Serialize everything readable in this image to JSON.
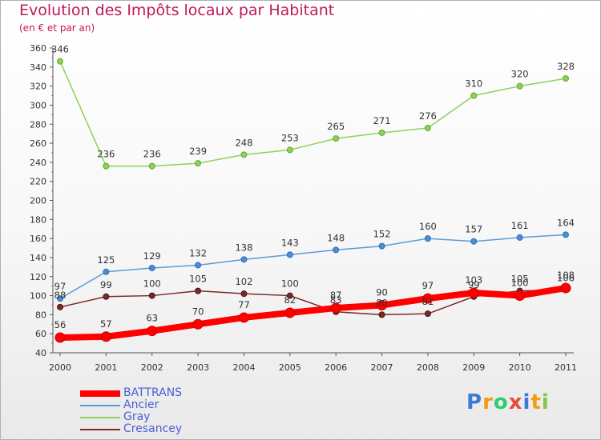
{
  "chart_data": {
    "type": "line",
    "title": "Evolution des Impôts locaux par Habitant",
    "subtitle": "(en € et par an)",
    "xlabel": "",
    "ylabel": "",
    "ylim": [
      40,
      360
    ],
    "yticks": [
      "40",
      "60",
      "80",
      "100",
      "120",
      "140",
      "160",
      "180",
      "200",
      "220",
      "240",
      "260",
      "280",
      "300",
      "320",
      "340",
      "360"
    ],
    "categories": [
      "2000",
      "2001",
      "2002",
      "2003",
      "2004",
      "2005",
      "2006",
      "2007",
      "2008",
      "2009",
      "2010",
      "2011"
    ],
    "series": [
      {
        "name": "BATTRANS",
        "color": "#ff0000",
        "values": [
          56,
          57,
          63,
          70,
          77,
          82,
          87,
          90,
          97,
          103,
          100,
          108
        ],
        "labels": [
          "56",
          "57",
          "63",
          "70",
          "77",
          "82",
          "87",
          "90",
          "97",
          "103",
          "100",
          "108"
        ]
      },
      {
        "name": "Ancier",
        "color": "#5b9bd5",
        "values": [
          97,
          125,
          129,
          132,
          138,
          143,
          148,
          152,
          160,
          157,
          161,
          164
        ],
        "labels": [
          "97",
          "125",
          "129",
          "132",
          "138",
          "143",
          "148",
          "152",
          "160",
          "157",
          "161",
          "164"
        ]
      },
      {
        "name": "Gray",
        "color": "#8fd158",
        "values": [
          346,
          236,
          236,
          239,
          248,
          253,
          265,
          271,
          276,
          310,
          320,
          328
        ],
        "labels": [
          "346",
          "236",
          "236",
          "239",
          "248",
          "253",
          "265",
          "271",
          "276",
          "310",
          "320",
          "328"
        ]
      },
      {
        "name": "Cresancey",
        "color": "#7a2a2a",
        "values": [
          88,
          99,
          100,
          105,
          102,
          100,
          83,
          80,
          81,
          99,
          105,
          106
        ],
        "labels": [
          "88",
          "99",
          "100",
          "105",
          "102",
          "100",
          "83",
          "80",
          "81",
          "99",
          "105",
          "106"
        ]
      }
    ],
    "legend_position": "bottom-left",
    "grid": false
  },
  "logo": {
    "letters": [
      "P",
      "r",
      "o",
      "x",
      "i",
      "t",
      "i"
    ],
    "colors": [
      "#3a7bd5",
      "#f39c12",
      "#2ecc71",
      "#e74c3c",
      "#3a7bd5",
      "#f39c12",
      "#8bc34a"
    ]
  }
}
